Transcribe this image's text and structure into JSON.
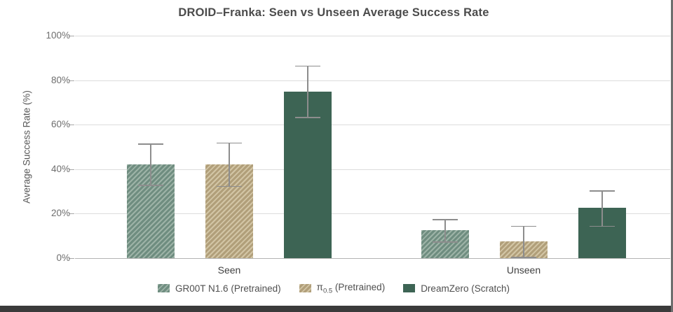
{
  "chart_data": {
    "type": "bar",
    "title": "DROID–Franka: Seen vs Unseen Average Success Rate",
    "ylabel": "Average Success Rate (%)",
    "xlabel": "",
    "ylim": [
      0,
      100
    ],
    "ytick_values": [
      0,
      20,
      40,
      60,
      80,
      100
    ],
    "ytick_labels": [
      "0%",
      "20%",
      "40%",
      "60%",
      "80%",
      "100%"
    ],
    "grid": "horizontal",
    "legend_position": "bottom-center",
    "error_bar_color": "#8d8d8d",
    "categories": [
      "Seen",
      "Unseen"
    ],
    "series": [
      {
        "name": "GR00T N1.6 (Pretrained)",
        "label_parts": {
          "base": "GR00T N1.6 (Pretrained)",
          "sub": "",
          "rest": ""
        },
        "color": "#6f8d80",
        "hatch": "/",
        "hatch_color": "#9db3a7",
        "values": [
          42,
          12.5
        ],
        "error_low": [
          33,
          7.5
        ],
        "error_high": [
          51.5,
          17.5
        ]
      },
      {
        "name": "π0.5 (Pretrained)",
        "label_parts": {
          "base": "π",
          "sub": "0.5",
          "rest": " (Pretrained)"
        },
        "color": "#b19f7a",
        "hatch": "/",
        "hatch_color": "#d2c5a5",
        "values": [
          42,
          7.5
        ],
        "error_low": [
          32.5,
          0.5
        ],
        "error_high": [
          52,
          14.5
        ]
      },
      {
        "name": "DreamZero (Scratch)",
        "label_parts": {
          "base": "DreamZero (Scratch)",
          "sub": "",
          "rest": ""
        },
        "color": "#3d6454",
        "hatch": null,
        "hatch_color": null,
        "values": [
          75,
          22.5
        ],
        "error_low": [
          63.5,
          14.5
        ],
        "error_high": [
          86.5,
          30.5
        ]
      }
    ]
  },
  "frame": {
    "bottom_edge_color": "#3b3b3b",
    "right_edge_color": "#6e6e6e"
  }
}
